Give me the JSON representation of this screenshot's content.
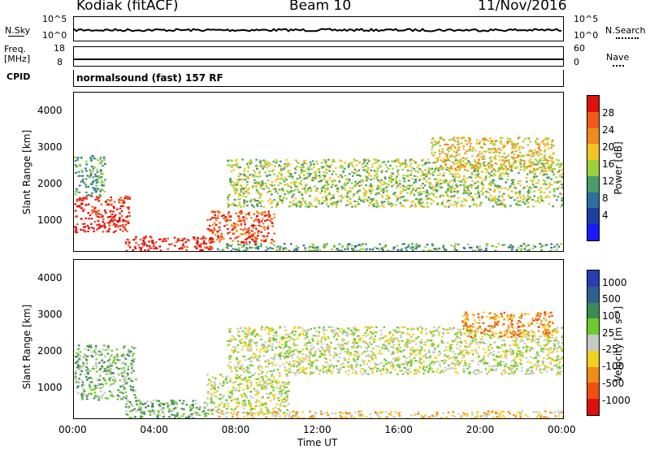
{
  "header": {
    "station": "Kodiak (fitACF)",
    "beam": "Beam 10",
    "date": "11/Nov/2016"
  },
  "top_panels": {
    "nsky_label": "N.Sky",
    "nsky_ticks": [
      "10^5",
      "10^0"
    ],
    "nsearch_label": "N.Search",
    "nsearch_ticks": [
      "10^5",
      "10^0"
    ],
    "freq_label_1": "Freq.",
    "freq_label_2": "[MHz]",
    "freq_ticks": [
      "18",
      "8"
    ],
    "nave_label": "Nave",
    "nave_ticks": [
      "60",
      "0"
    ],
    "cpid_label": "CPID",
    "cpid_value": "normalsound (fast) 157 RF"
  },
  "colors": {
    "power_scale": [
      "#1a1aff",
      "#1f3fa0",
      "#2f6e9e",
      "#4a9a6a",
      "#9bd23c",
      "#f2c428",
      "#ef8a1f",
      "#ef5a1a",
      "#e01010"
    ],
    "velocity_scale": [
      "#2a3cb4",
      "#2f5f8e",
      "#3e8a55",
      "#6ccc2c",
      "#c8c8c4",
      "#f0d21e",
      "#f08c18",
      "#ef5010",
      "#e00f0f"
    ]
  },
  "chart_data": [
    {
      "type": "heatmap",
      "title": "",
      "xlabel": "Time UT",
      "ylabel": "Slant Range [km]",
      "x_ticks": [
        "00:00",
        "04:00",
        "08:00",
        "12:00",
        "16:00",
        "20:00",
        "00:00"
      ],
      "y_ticks": [
        "1000",
        "2000",
        "3000",
        "4000"
      ],
      "xlim_hours": [
        0,
        24
      ],
      "ylim_km": [
        180,
        4500
      ],
      "colorbar_label": "Power [dB]",
      "colorbar_ticks": [
        "4",
        "8",
        "12",
        "16",
        "20",
        "24",
        "28"
      ],
      "regions": [
        {
          "name": "early-band",
          "t": [
            0.0,
            2.7
          ],
          "r": [
            700,
            1700
          ],
          "level": 8
        },
        {
          "name": "early-upper",
          "t": [
            0.0,
            1.5
          ],
          "r": [
            1700,
            2800
          ],
          "level": 3
        },
        {
          "name": "sweep-low",
          "t": [
            2.5,
            6.8
          ],
          "r": [
            200,
            600
          ],
          "level": 8
        },
        {
          "name": "mid-band",
          "t": [
            6.5,
            9.8
          ],
          "r": [
            400,
            1300
          ],
          "level": 7
        },
        {
          "name": "near-ground",
          "t": [
            7.0,
            24.0
          ],
          "r": [
            180,
            400
          ],
          "level": 3
        },
        {
          "name": "long-band",
          "t": [
            7.5,
            24.0
          ],
          "r": [
            1400,
            2700
          ],
          "level": 4
        },
        {
          "name": "late-upper",
          "t": [
            17.5,
            23.5
          ],
          "r": [
            2400,
            3300
          ],
          "level": 5
        }
      ]
    },
    {
      "type": "heatmap",
      "title": "",
      "xlabel": "Time UT",
      "ylabel": "Slant Range [km]",
      "x_ticks": [
        "00:00",
        "04:00",
        "08:00",
        "12:00",
        "16:00",
        "20:00",
        "00:00"
      ],
      "y_ticks": [
        "1000",
        "2000",
        "3000",
        "4000"
      ],
      "xlim_hours": [
        0,
        24
      ],
      "ylim_km": [
        180,
        4500
      ],
      "colorbar_label": "Velocity [m s⁻¹]",
      "colorbar_ticks": [
        "1000",
        "500",
        "100",
        "25",
        "-25",
        "-100",
        "-500",
        "-1000"
      ],
      "regions": [
        {
          "name": "early-band",
          "t": [
            0.0,
            3.0
          ],
          "r": [
            700,
            2200
          ],
          "level": 3
        },
        {
          "name": "sweep-low",
          "t": [
            2.5,
            6.8
          ],
          "r": [
            200,
            700
          ],
          "level": 3
        },
        {
          "name": "mid-band",
          "t": [
            6.5,
            10.5
          ],
          "r": [
            300,
            1400
          ],
          "level": 4
        },
        {
          "name": "long-band",
          "t": [
            7.5,
            24.0
          ],
          "r": [
            1400,
            2700
          ],
          "level": 4
        },
        {
          "name": "late-upper",
          "t": [
            19.0,
            23.5
          ],
          "r": [
            2400,
            3100
          ],
          "level": 6
        },
        {
          "name": "near-ground",
          "t": [
            7.0,
            24.0
          ],
          "r": [
            180,
            400
          ],
          "level": 5
        }
      ]
    }
  ]
}
